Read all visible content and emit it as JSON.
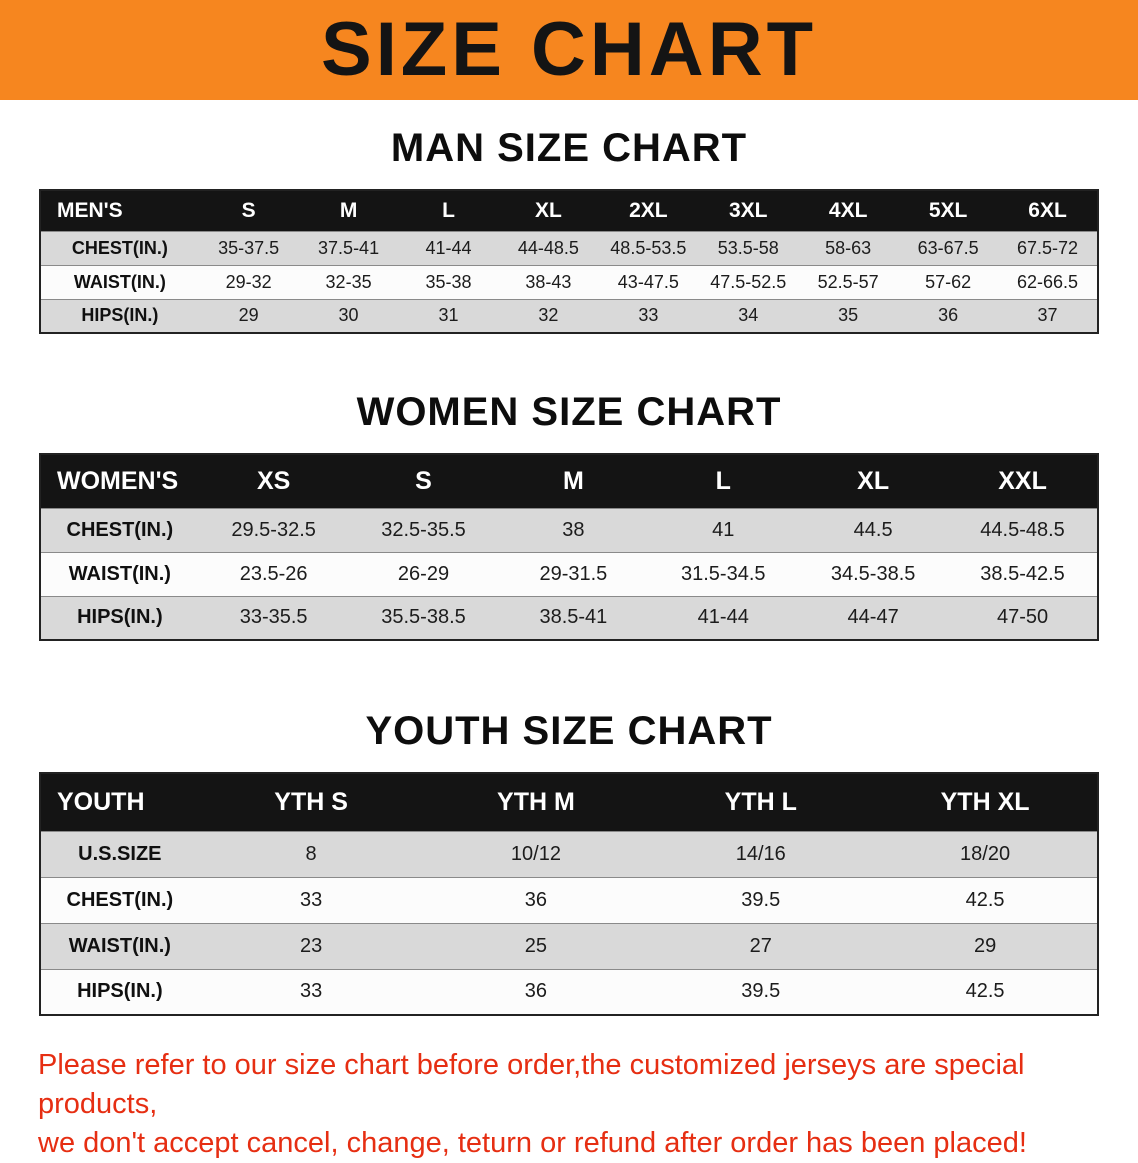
{
  "banner": {
    "title": "SIZE CHART"
  },
  "colors": {
    "banner_bg": "#f6861f",
    "banner_text": "#141414",
    "header_bg": "#141414",
    "header_text": "#ffffff",
    "row_shade": "#d9d9d9",
    "row_plain": "#fcfcfc",
    "disclaimer_text": "#e62e12"
  },
  "sections": [
    {
      "title": "MAN SIZE CHART",
      "table": {
        "header": [
          "MEN'S",
          "S",
          "M",
          "L",
          "XL",
          "2XL",
          "3XL",
          "4XL",
          "5XL",
          "6XL"
        ],
        "rows": [
          {
            "label": "CHEST(IN.)",
            "values": [
              "35-37.5",
              "37.5-41",
              "41-44",
              "44-48.5",
              "48.5-53.5",
              "53.5-58",
              "58-63",
              "63-67.5",
              "67.5-72"
            ]
          },
          {
            "label": "WAIST(IN.)",
            "values": [
              "29-32",
              "32-35",
              "35-38",
              "38-43",
              "43-47.5",
              "47.5-52.5",
              "52.5-57",
              "57-62",
              "62-66.5"
            ]
          },
          {
            "label": "HIPS(IN.)",
            "values": [
              "29",
              "30",
              "31",
              "32",
              "33",
              "34",
              "35",
              "36",
              "37"
            ]
          }
        ]
      }
    },
    {
      "title": "WOMEN SIZE CHART",
      "table": {
        "header": [
          "WOMEN'S",
          "XS",
          "S",
          "M",
          "L",
          "XL",
          "XXL"
        ],
        "rows": [
          {
            "label": "CHEST(IN.)",
            "values": [
              "29.5-32.5",
              "32.5-35.5",
              "38",
              "41",
              "44.5",
              "44.5-48.5"
            ]
          },
          {
            "label": "WAIST(IN.)",
            "values": [
              "23.5-26",
              "26-29",
              "29-31.5",
              "31.5-34.5",
              "34.5-38.5",
              "38.5-42.5"
            ]
          },
          {
            "label": "HIPS(IN.)",
            "values": [
              "33-35.5",
              "35.5-38.5",
              "38.5-41",
              "41-44",
              "44-47",
              "47-50"
            ]
          }
        ]
      }
    },
    {
      "title": "YOUTH SIZE CHART",
      "table": {
        "header": [
          "YOUTH",
          "YTH S",
          "YTH M",
          "YTH L",
          "YTH XL"
        ],
        "rows": [
          {
            "label": "U.S.SIZE",
            "values": [
              "8",
              "10/12",
              "14/16",
              "18/20"
            ]
          },
          {
            "label": "CHEST(IN.)",
            "values": [
              "33",
              "36",
              "39.5",
              "42.5"
            ]
          },
          {
            "label": "WAIST(IN.)",
            "values": [
              "23",
              "25",
              "27",
              "29"
            ]
          },
          {
            "label": "HIPS(IN.)",
            "values": [
              "33",
              "36",
              "39.5",
              "42.5"
            ]
          }
        ]
      }
    }
  ],
  "disclaimer": {
    "line1": "Please refer to our size chart before order,the customized jerseys are special products,",
    "line2": "we don't accept cancel, change, teturn or refund after order has been placed!"
  }
}
